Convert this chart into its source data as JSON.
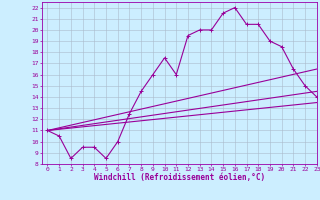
{
  "xlabel": "Windchill (Refroidissement éolien,°C)",
  "background_color": "#cceeff",
  "line_color": "#990099",
  "spine_color": "#9900aa",
  "xlim": [
    -0.5,
    23
  ],
  "ylim": [
    8,
    22.5
  ],
  "xticks": [
    0,
    1,
    2,
    3,
    4,
    5,
    6,
    7,
    8,
    9,
    10,
    11,
    12,
    13,
    14,
    15,
    16,
    17,
    18,
    19,
    20,
    21,
    22,
    23
  ],
  "yticks": [
    8,
    9,
    10,
    11,
    12,
    13,
    14,
    15,
    16,
    17,
    18,
    19,
    20,
    21,
    22
  ],
  "line1_x": [
    0,
    1,
    2,
    3,
    4,
    5,
    6,
    7,
    8,
    9,
    10,
    11,
    12,
    13,
    14,
    15,
    16,
    17,
    18,
    19,
    20,
    21,
    22,
    23
  ],
  "line1_y": [
    11,
    10.5,
    8.5,
    9.5,
    9.5,
    8.5,
    10,
    12.5,
    14.5,
    16,
    17.5,
    16,
    19.5,
    20,
    20,
    21.5,
    22,
    20.5,
    20.5,
    19,
    18.5,
    16.5,
    15,
    14
  ],
  "line2_x": [
    0,
    23
  ],
  "line2_y": [
    11,
    16.5
  ],
  "line3_x": [
    0,
    23
  ],
  "line3_y": [
    11,
    14.5
  ],
  "line4_x": [
    0,
    23
  ],
  "line4_y": [
    11,
    13.5
  ],
  "grid_color": "#aabbcc",
  "tick_fontsize": 4.5,
  "xlabel_fontsize": 5.5
}
